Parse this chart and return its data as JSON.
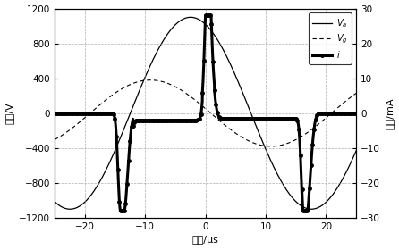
{
  "title": "",
  "xlabel": "时间/μs",
  "ylabel_left": "电压/V",
  "ylabel_right": "电流/mA",
  "xlim": [
    -25,
    25
  ],
  "ylim_left": [
    -1200,
    1200
  ],
  "ylim_right": [
    -30,
    30
  ],
  "xticks": [
    -20,
    -10,
    0,
    10,
    20
  ],
  "yticks_left": [
    -1200,
    -800,
    -400,
    0,
    400,
    800,
    1200
  ],
  "yticks_right": [
    -30,
    -20,
    -10,
    0,
    10,
    20,
    30
  ],
  "Va_amplitude": 1100,
  "Va_period": 40,
  "Va_phase_deg": 112,
  "Vg_amplitude": 380,
  "Vg_period": 40,
  "Vg_phase_deg": 172,
  "legend_Va": "$V_a$",
  "legend_Vg": "$V_g$",
  "legend_i": "$i$",
  "grid_color": "#999999",
  "background_color": "white"
}
